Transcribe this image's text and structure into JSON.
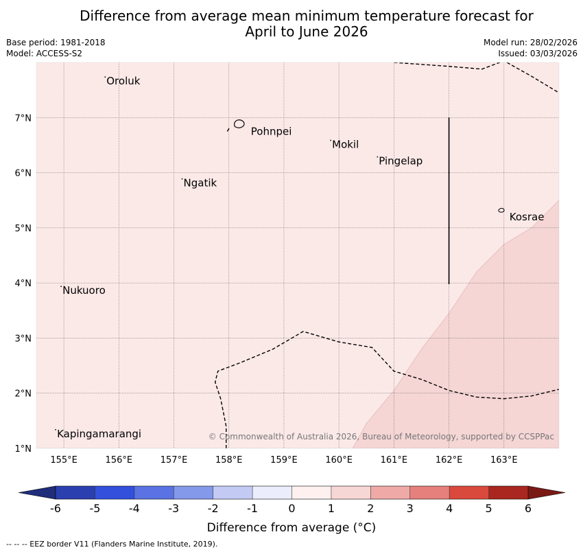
{
  "title_line1": "Difference from average mean minimum temperature forecast for",
  "title_line2": "April to June 2026",
  "base_period": "Base period: 1981-2018",
  "model": "Model: ACCESS-S2",
  "model_run": "Model run: 28/02/2026",
  "issued": "Issued: 03/03/2026",
  "copyright": "© Commonwealth of Australia 2026, Bureau of Meteorology, supported by CCSPPac",
  "footnote": "--  --  -- EEZ border V11 (Flanders Marine Institute, 2019).",
  "map": {
    "lon_min": 154.5,
    "lon_max": 164.0,
    "lat_min": 1.0,
    "lat_max": 8.0,
    "lon_ticks": [
      155,
      156,
      157,
      158,
      159,
      160,
      161,
      162,
      163
    ],
    "lon_labels": [
      "155°E",
      "156°E",
      "157°E",
      "158°E",
      "159°E",
      "160°E",
      "161°E",
      "162°E",
      "163°E"
    ],
    "lat_ticks": [
      1,
      2,
      3,
      4,
      5,
      6,
      7
    ],
    "lat_labels": [
      "1°N",
      "2°N",
      "3°N",
      "4°N",
      "5°N",
      "6°N",
      "7°N"
    ],
    "background_color": "#fbe9e8",
    "anomaly_color": "#f5d6d5",
    "places": [
      {
        "name": "Oroluk",
        "lon": 155.75,
        "lat": 7.65
      },
      {
        "name": "Pohnpei",
        "lon": 158.3,
        "lat": 6.9
      },
      {
        "name": "Mokil",
        "lon": 159.85,
        "lat": 6.5
      },
      {
        "name": "Pingelap",
        "lon": 160.7,
        "lat": 6.2
      },
      {
        "name": "Ngatik",
        "lon": 157.15,
        "lat": 5.8
      },
      {
        "name": "Kosrae",
        "lon": 162.95,
        "lat": 5.3
      },
      {
        "name": "Nukuoro",
        "lon": 154.95,
        "lat": 3.85
      },
      {
        "name": "Kapingamarangi",
        "lon": 154.85,
        "lat": 1.25
      }
    ]
  },
  "colorbar": {
    "label": "Difference from average (°C)",
    "tick_labels": [
      "-6",
      "-5",
      "-4",
      "-3",
      "-2",
      "-1",
      "0",
      "1",
      "2",
      "3",
      "4",
      "5",
      "6"
    ],
    "colors": [
      "#2b3fae",
      "#3350dd",
      "#5a72e3",
      "#8599ea",
      "#c3cbf5",
      "#ebedfc",
      "#fdf0ef",
      "#f7d7d5",
      "#efaaa7",
      "#e6807c",
      "#d94a3d",
      "#a9271f"
    ],
    "min_color": "#1f2d7a",
    "max_color": "#7a1a15"
  }
}
